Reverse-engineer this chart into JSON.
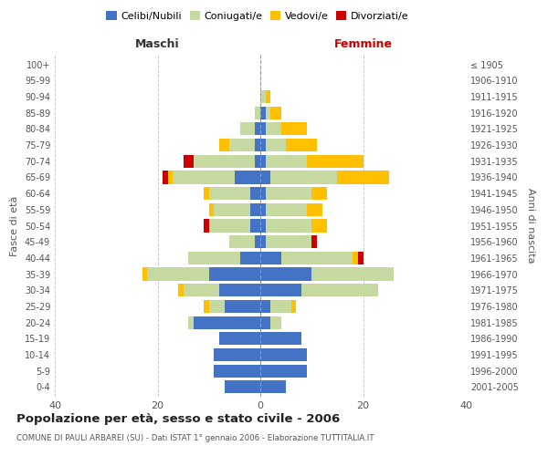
{
  "age_groups": [
    "0-4",
    "5-9",
    "10-14",
    "15-19",
    "20-24",
    "25-29",
    "30-34",
    "35-39",
    "40-44",
    "45-49",
    "50-54",
    "55-59",
    "60-64",
    "65-69",
    "70-74",
    "75-79",
    "80-84",
    "85-89",
    "90-94",
    "95-99",
    "100+"
  ],
  "birth_years": [
    "2001-2005",
    "1996-2000",
    "1991-1995",
    "1986-1990",
    "1981-1985",
    "1976-1980",
    "1971-1975",
    "1966-1970",
    "1961-1965",
    "1956-1960",
    "1951-1955",
    "1946-1950",
    "1941-1945",
    "1936-1940",
    "1931-1935",
    "1926-1930",
    "1921-1925",
    "1916-1920",
    "1911-1915",
    "1906-1910",
    "≤ 1905"
  ],
  "maschi": {
    "celibi": [
      7,
      9,
      9,
      8,
      13,
      7,
      8,
      10,
      4,
      1,
      2,
      2,
      2,
      5,
      1,
      1,
      1,
      0,
      0,
      0,
      0
    ],
    "coniugati": [
      0,
      0,
      0,
      0,
      1,
      3,
      7,
      12,
      10,
      5,
      8,
      7,
      8,
      12,
      12,
      5,
      3,
      1,
      0,
      0,
      0
    ],
    "vedovi": [
      0,
      0,
      0,
      0,
      0,
      1,
      1,
      1,
      0,
      0,
      0,
      1,
      1,
      1,
      0,
      2,
      0,
      0,
      0,
      0,
      0
    ],
    "divorziati": [
      0,
      0,
      0,
      0,
      0,
      0,
      0,
      0,
      0,
      0,
      1,
      0,
      0,
      1,
      2,
      0,
      0,
      0,
      0,
      0,
      0
    ]
  },
  "femmine": {
    "nubili": [
      5,
      9,
      9,
      8,
      2,
      2,
      8,
      10,
      4,
      1,
      1,
      1,
      1,
      2,
      1,
      1,
      1,
      1,
      0,
      0,
      0
    ],
    "coniugate": [
      0,
      0,
      0,
      0,
      2,
      4,
      15,
      16,
      14,
      9,
      9,
      8,
      9,
      13,
      8,
      4,
      3,
      1,
      1,
      0,
      0
    ],
    "vedove": [
      0,
      0,
      0,
      0,
      0,
      1,
      0,
      0,
      1,
      0,
      3,
      3,
      3,
      10,
      11,
      6,
      5,
      2,
      1,
      0,
      0
    ],
    "divorziate": [
      0,
      0,
      0,
      0,
      0,
      0,
      0,
      0,
      1,
      1,
      0,
      0,
      0,
      0,
      0,
      0,
      0,
      0,
      0,
      0,
      0
    ]
  },
  "colors": {
    "celibi_nubili": "#4472c4",
    "coniugati": "#c5d9a0",
    "vedovi": "#ffc000",
    "divorziati": "#cc0000"
  },
  "xlim": 40,
  "title": "Popolazione per età, sesso e stato civile - 2006",
  "subtitle": "COMUNE DI PAULI ARBAREI (SU) - Dati ISTAT 1° gennaio 2006 - Elaborazione TUTTITALIA.IT",
  "ylabel_left": "Fasce di età",
  "ylabel_right": "Anni di nascita",
  "xlabel_maschi": "Maschi",
  "xlabel_femmine": "Femmine",
  "legend_labels": [
    "Celibi/Nubili",
    "Coniugati/e",
    "Vedovi/e",
    "Divorziati/e"
  ],
  "background_color": "#ffffff",
  "grid_color": "#cccccc"
}
